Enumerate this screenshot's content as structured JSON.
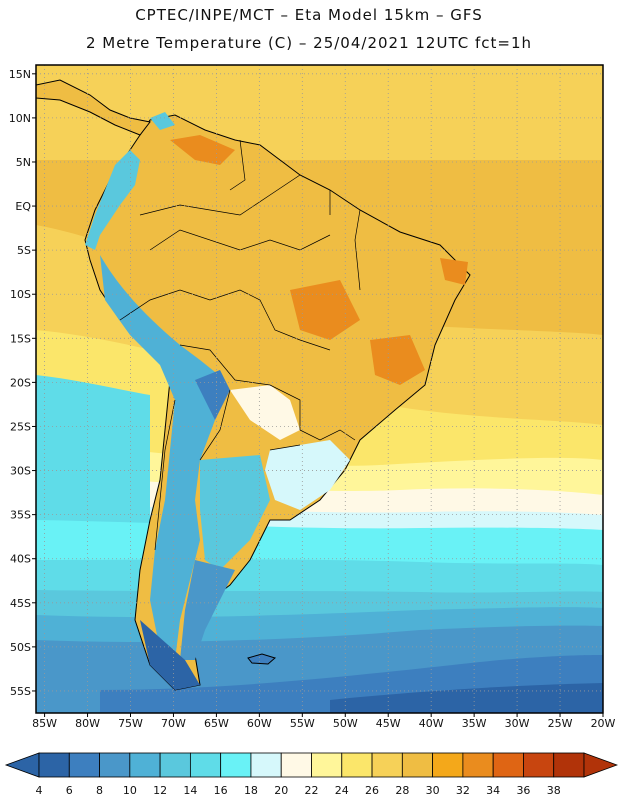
{
  "header": {
    "line1": "CPTEC/INPE/MCT –  Eta Model 15km – GFS",
    "line2": "2 Metre Temperature (C) – 25/04/2021 12UTC fct=1h"
  },
  "map": {
    "lat_labels": [
      "15N",
      "10N",
      "5N",
      "EQ",
      "5S",
      "10S",
      "15S",
      "20S",
      "25S",
      "30S",
      "35S",
      "40S",
      "45S",
      "50S",
      "55S"
    ],
    "lon_labels": [
      "85W",
      "80W",
      "75W",
      "70W",
      "65W",
      "60W",
      "55W",
      "50W",
      "45W",
      "40W",
      "35W",
      "30W",
      "25W",
      "20W"
    ],
    "lat_values": [
      15,
      10,
      5,
      0,
      -5,
      -10,
      -15,
      -20,
      -25,
      -30,
      -35,
      -40,
      -45,
      -50,
      -55
    ],
    "lon_values": [
      -85,
      -80,
      -75,
      -70,
      -65,
      -60,
      -55,
      -50,
      -45,
      -40,
      -35,
      -30,
      -25,
      -20
    ],
    "domain": {
      "lon_min": -86,
      "lon_max": -20,
      "lat_min": -57.5,
      "lat_max": 16
    }
  },
  "colorbar": {
    "labels": [
      "4",
      "6",
      "8",
      "10",
      "12",
      "14",
      "16",
      "18",
      "20",
      "22",
      "24",
      "26",
      "28",
      "30",
      "32",
      "34",
      "36",
      "38"
    ],
    "colors": [
      "#2c64a6",
      "#3d7fbf",
      "#4a97c9",
      "#4fb1d6",
      "#5ac8dd",
      "#5fdce8",
      "#69f2f6",
      "#d6f8fb",
      "#fff9e6",
      "#fff69a",
      "#fbe66a",
      "#f6d158",
      "#efbd43",
      "#f4a81a",
      "#ea8c1e",
      "#df6514",
      "#c8450f",
      "#b13309"
    ]
  }
}
